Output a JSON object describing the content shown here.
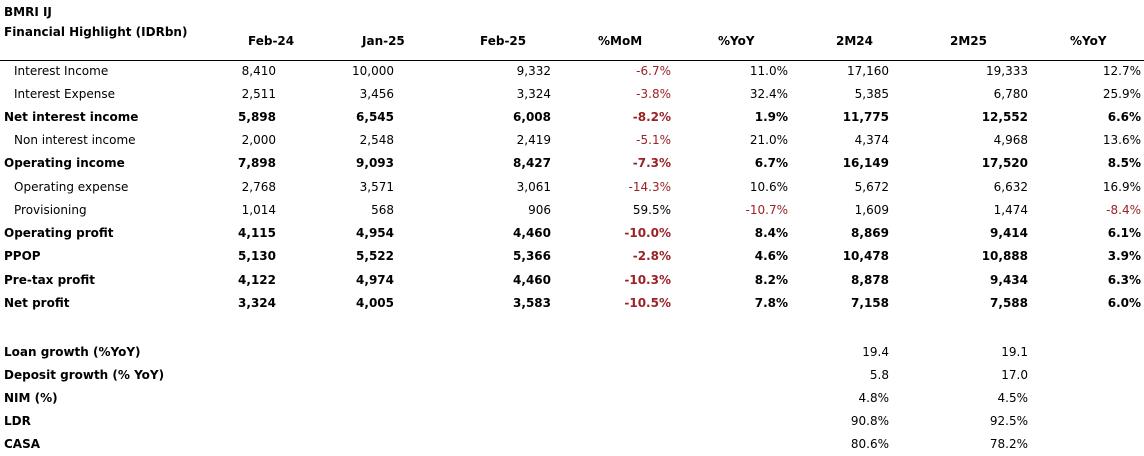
{
  "ticker": "BMRI IJ",
  "header": {
    "label": "Financial Highlight (IDRbn)",
    "columns": [
      "Feb-24",
      "Jan-25",
      "Feb-25",
      "%MoM",
      "%YoY",
      "2M24",
      "2M25",
      "%YoY"
    ]
  },
  "rows": [
    {
      "label": "Interest Income",
      "bold": false,
      "indent": true,
      "values": [
        "8,410",
        "10,000",
        "9,332",
        "-6.7%",
        "11.0%",
        "17,160",
        "19,333",
        "12.7%"
      ]
    },
    {
      "label": "Interest Expense",
      "bold": false,
      "indent": true,
      "values": [
        "2,511",
        "3,456",
        "3,324",
        "-3.8%",
        "32.4%",
        "5,385",
        "6,780",
        "25.9%"
      ]
    },
    {
      "label": "Net interest income",
      "bold": true,
      "indent": false,
      "values": [
        "5,898",
        "6,545",
        "6,008",
        "-8.2%",
        "1.9%",
        "11,775",
        "12,552",
        "6.6%"
      ]
    },
    {
      "label": "Non interest income",
      "bold": false,
      "indent": true,
      "values": [
        "2,000",
        "2,548",
        "2,419",
        "-5.1%",
        "21.0%",
        "4,374",
        "4,968",
        "13.6%"
      ]
    },
    {
      "label": "Operating income",
      "bold": true,
      "indent": false,
      "values": [
        "7,898",
        "9,093",
        "8,427",
        "-7.3%",
        "6.7%",
        "16,149",
        "17,520",
        "8.5%"
      ]
    },
    {
      "label": "Operating expense",
      "bold": false,
      "indent": true,
      "values": [
        "2,768",
        "3,571",
        "3,061",
        "-14.3%",
        "10.6%",
        "5,672",
        "6,632",
        "16.9%"
      ]
    },
    {
      "label": "Provisioning",
      "bold": false,
      "indent": true,
      "values": [
        "1,014",
        "568",
        "906",
        "59.5%",
        "-10.7%",
        "1,609",
        "1,474",
        "-8.4%"
      ]
    },
    {
      "label": "Operating profit",
      "bold": true,
      "indent": false,
      "values": [
        "4,115",
        "4,954",
        "4,460",
        "-10.0%",
        "8.4%",
        "8,869",
        "9,414",
        "6.1%"
      ]
    },
    {
      "label": "PPOP",
      "bold": true,
      "indent": false,
      "values": [
        "5,130",
        "5,522",
        "5,366",
        "-2.8%",
        "4.6%",
        "10,478",
        "10,888",
        "3.9%"
      ]
    },
    {
      "label": "Pre-tax profit",
      "bold": true,
      "indent": false,
      "values": [
        "4,122",
        "4,974",
        "4,460",
        "-10.3%",
        "8.2%",
        "8,878",
        "9,434",
        "6.3%"
      ]
    },
    {
      "label": "Net profit",
      "bold": true,
      "indent": false,
      "values": [
        "3,324",
        "4,005",
        "3,583",
        "-10.5%",
        "7.8%",
        "7,158",
        "7,588",
        "6.0%"
      ]
    }
  ],
  "kpis": [
    {
      "label": "Loan growth (%YoY)",
      "values": [
        "19.4",
        "19.1"
      ]
    },
    {
      "label": "Deposit growth (% YoY)",
      "values": [
        "5.8",
        "17.0"
      ]
    },
    {
      "label": "NIM (%)",
      "values": [
        "4.8%",
        "4.5%"
      ]
    },
    {
      "label": "LDR",
      "values": [
        "90.8%",
        "92.5%"
      ]
    },
    {
      "label": "CASA",
      "values": [
        "80.6%",
        "78.2%"
      ]
    }
  ],
  "colors": {
    "negative": "#9b2226",
    "text": "#000000"
  }
}
